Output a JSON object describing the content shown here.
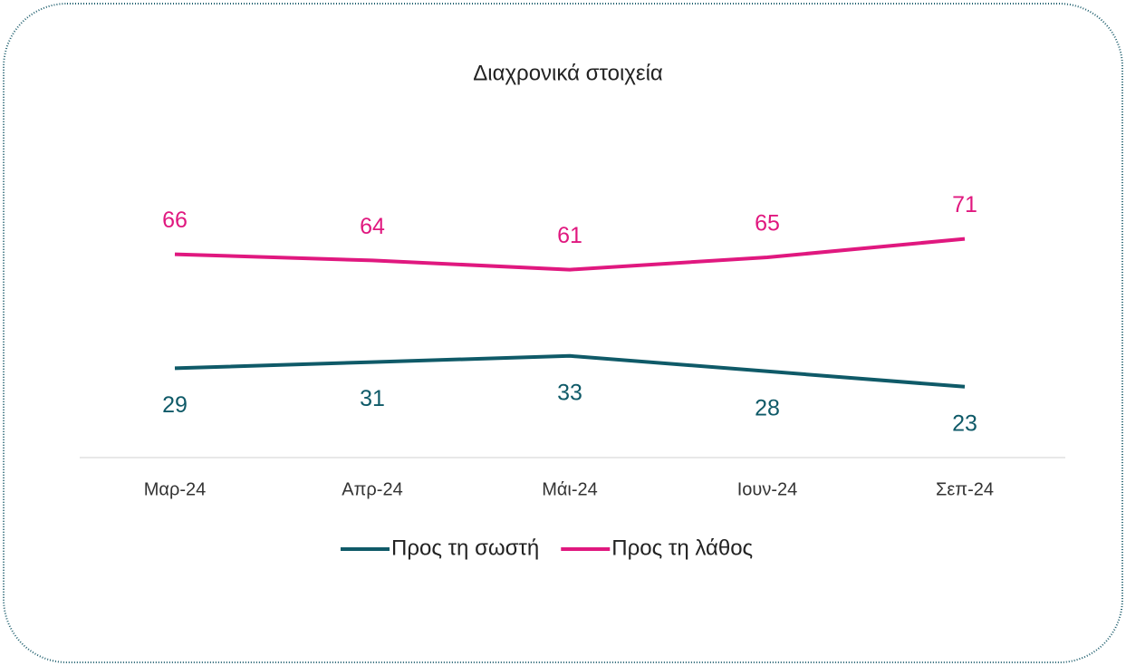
{
  "chart_data": {
    "type": "line",
    "title": "Διαχρονικά στοιχεία",
    "categories": [
      "Μαρ-24",
      "Απρ-24",
      "Μάι-24",
      "Ιουν-24",
      "Σεπ-24"
    ],
    "series": [
      {
        "name": "Προς τη σωστή",
        "color": "#0f5a68",
        "values": [
          29,
          31,
          33,
          28,
          23
        ]
      },
      {
        "name": "Προς τη λάθος",
        "color": "#e0187f",
        "values": [
          66,
          64,
          61,
          65,
          71
        ]
      }
    ],
    "ylim": [
      0,
      80
    ],
    "legend": "bottom"
  }
}
